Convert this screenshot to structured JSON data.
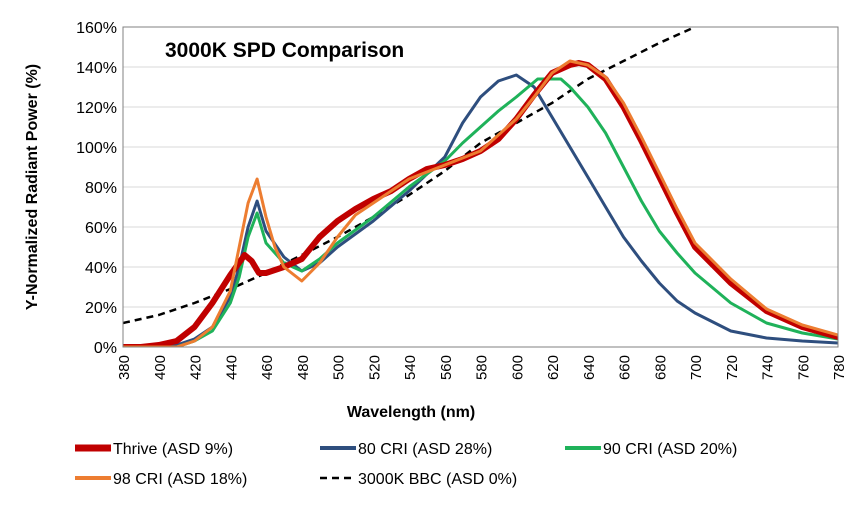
{
  "chart_data": {
    "type": "line",
    "title": "3000K SPD Comparison",
    "xlabel": "Wavelength (nm)",
    "ylabel": "Y-Normalized Radiant Power (%)",
    "xlim": [
      380,
      780
    ],
    "ylim": [
      0,
      160
    ],
    "xticks": [
      380,
      400,
      420,
      440,
      460,
      480,
      500,
      520,
      540,
      560,
      580,
      600,
      620,
      640,
      660,
      680,
      700,
      720,
      740,
      760,
      780
    ],
    "yticks": [
      "0%",
      "20%",
      "40%",
      "60%",
      "80%",
      "100%",
      "120%",
      "140%",
      "160%"
    ],
    "grid": "horizontal",
    "legend": "bottom",
    "series": [
      {
        "name": "Thrive (ASD 9%)",
        "color": "#c00000",
        "dash": false,
        "width": 6,
        "x": [
          380,
          390,
          400,
          410,
          420,
          430,
          440,
          448,
          452,
          456,
          460,
          470,
          480,
          490,
          500,
          510,
          520,
          530,
          540,
          550,
          560,
          570,
          580,
          590,
          600,
          610,
          620,
          630,
          635,
          640,
          650,
          660,
          670,
          680,
          690,
          700,
          720,
          740,
          760,
          780
        ],
        "y": [
          0,
          0,
          1,
          3,
          10,
          22,
          36,
          46,
          43,
          37,
          37,
          40,
          44,
          55,
          63,
          69,
          74,
          78,
          84,
          89,
          91,
          94,
          98,
          104,
          114,
          126,
          137,
          141,
          142,
          141,
          134,
          120,
          103,
          85,
          67,
          50,
          32,
          18,
          10,
          5
        ]
      },
      {
        "name": "80 CRI  (ASD 28%)",
        "color": "#2e4e7e",
        "dash": false,
        "width": 3,
        "x": [
          380,
          400,
          410,
          420,
          430,
          440,
          445,
          450,
          455,
          460,
          470,
          480,
          490,
          500,
          520,
          540,
          560,
          570,
          580,
          590,
          600,
          610,
          620,
          630,
          640,
          650,
          660,
          670,
          680,
          690,
          700,
          720,
          740,
          760,
          780
        ],
        "y": [
          0,
          0,
          1,
          4,
          10,
          25,
          40,
          60,
          73,
          58,
          45,
          38,
          42,
          50,
          63,
          78,
          95,
          112,
          125,
          133,
          136,
          130,
          115,
          100,
          85,
          70,
          55,
          43,
          32,
          23,
          17,
          8,
          4.5,
          3,
          2
        ]
      },
      {
        "name": "90 CRI  (ASD 20%)",
        "color": "#1fb25a",
        "dash": false,
        "width": 3,
        "x": [
          380,
          410,
          420,
          430,
          440,
          445,
          450,
          455,
          460,
          470,
          480,
          490,
          500,
          520,
          540,
          560,
          570,
          580,
          590,
          600,
          612,
          625,
          630,
          640,
          650,
          660,
          670,
          680,
          690,
          700,
          720,
          740,
          760,
          780
        ],
        "y": [
          0,
          0,
          3,
          8,
          22,
          35,
          55,
          67,
          52,
          42,
          38,
          44,
          52,
          65,
          80,
          93,
          102,
          110,
          118,
          125,
          134,
          134,
          130,
          120,
          107,
          90,
          73,
          58,
          47,
          37,
          22,
          12,
          7,
          4
        ]
      },
      {
        "name": "98 CRI (ASD 18%)",
        "color": "#ed7d31",
        "dash": false,
        "width": 3,
        "x": [
          380,
          410,
          420,
          430,
          440,
          445,
          450,
          455,
          460,
          465,
          470,
          480,
          490,
          500,
          510,
          520,
          540,
          560,
          580,
          600,
          610,
          620,
          630,
          640,
          650,
          660,
          670,
          680,
          690,
          700,
          720,
          740,
          760,
          780
        ],
        "y": [
          0,
          0,
          3,
          10,
          28,
          50,
          72,
          84,
          65,
          50,
          40,
          33,
          42,
          55,
          66,
          72,
          84,
          91,
          98,
          114,
          125,
          137,
          143,
          141,
          135,
          122,
          105,
          87,
          69,
          52,
          34,
          19,
          11,
          6
        ]
      },
      {
        "name": "3000K BBC (ASD 0%)",
        "color": "#000000",
        "dash": true,
        "width": 2.5,
        "x": [
          380,
          400,
          420,
          440,
          460,
          480,
          500,
          520,
          540,
          560,
          580,
          600,
          620,
          640,
          660,
          680,
          700
        ],
        "y": [
          12,
          16,
          22,
          29,
          37,
          46,
          55,
          65,
          76,
          88,
          102,
          112,
          122,
          134,
          143,
          152,
          160
        ]
      }
    ]
  }
}
